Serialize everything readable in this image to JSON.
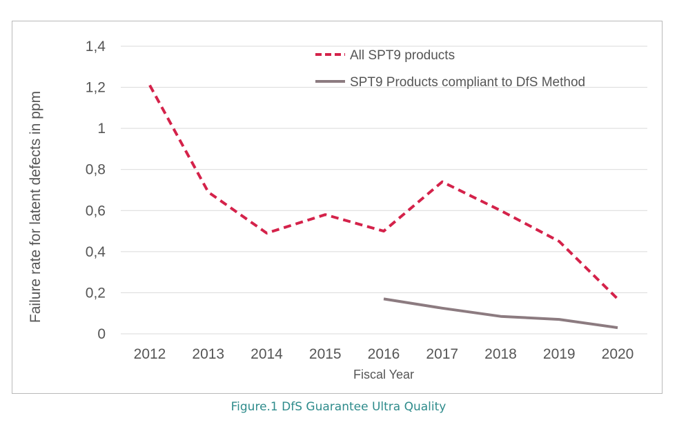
{
  "caption": "Figure.1 DfS Guarantee Ultra Quality",
  "chart_data": {
    "type": "line",
    "xlabel": "Fiscal Year",
    "ylabel": "Failure rate for latent defects in ppm",
    "categories": [
      "2012",
      "2013",
      "2014",
      "2015",
      "2016",
      "2017",
      "2018",
      "2019",
      "2020"
    ],
    "ylim": [
      0,
      1.4
    ],
    "yticks": [
      0,
      0.2,
      0.4,
      0.6,
      0.8,
      1,
      1.2,
      1.4
    ],
    "ytick_labels": [
      "0",
      "0,2",
      "0,4",
      "0,6",
      "0,8",
      "1",
      "1,2",
      "1,4"
    ],
    "grid": true,
    "legend_position": "top-right",
    "series": [
      {
        "name": "All SPT9 products",
        "style": "dashed",
        "color": "#d4224a",
        "values": [
          1.21,
          0.69,
          0.49,
          0.58,
          0.5,
          0.74,
          0.6,
          0.45,
          0.17
        ]
      },
      {
        "name": "SPT9 Products compliant to DfS Method",
        "style": "solid",
        "color": "#8c7b80",
        "values": [
          null,
          null,
          null,
          null,
          0.17,
          0.125,
          0.085,
          0.07,
          0.03
        ]
      }
    ]
  }
}
